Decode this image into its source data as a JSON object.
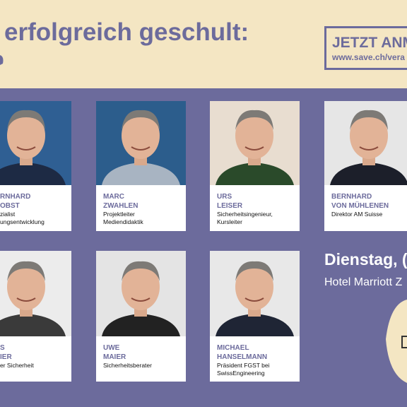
{
  "header": {
    "title": "erfolgreich geschult:"
  },
  "cta": {
    "title": "JETZT ANM",
    "url": "www.save.ch/vera"
  },
  "speakers": [
    {
      "name": [
        "RNHARD",
        "OBST"
      ],
      "role": [
        "zialist",
        "ungsentwicklung"
      ]
    },
    {
      "name": [
        "MARC",
        "ZWAHLEN"
      ],
      "role": [
        "Projektleiter",
        "Mediendidaktik"
      ]
    },
    {
      "name": [
        "URS",
        "LEISER"
      ],
      "role": [
        "Sicherheitsingenieur,",
        "Kursleiter"
      ]
    },
    {
      "name": [
        "BERNHARD",
        "VON MÜHLENEN"
      ],
      "role": [
        "Direktor AM Suisse"
      ]
    },
    {
      "name": [
        "S",
        "IER"
      ],
      "role": [
        "er Sicherheit"
      ]
    },
    {
      "name": [
        "UWE",
        "MAIER"
      ],
      "role": [
        "Sicherheitsberater"
      ]
    },
    {
      "name": [
        "MICHAEL",
        "HANSELMANN"
      ],
      "role": [
        "Präsident FGST bei",
        "SwissEngineering"
      ]
    }
  ],
  "event": {
    "date": "Dienstag, (",
    "venue": "Hotel Marriott Z"
  }
}
